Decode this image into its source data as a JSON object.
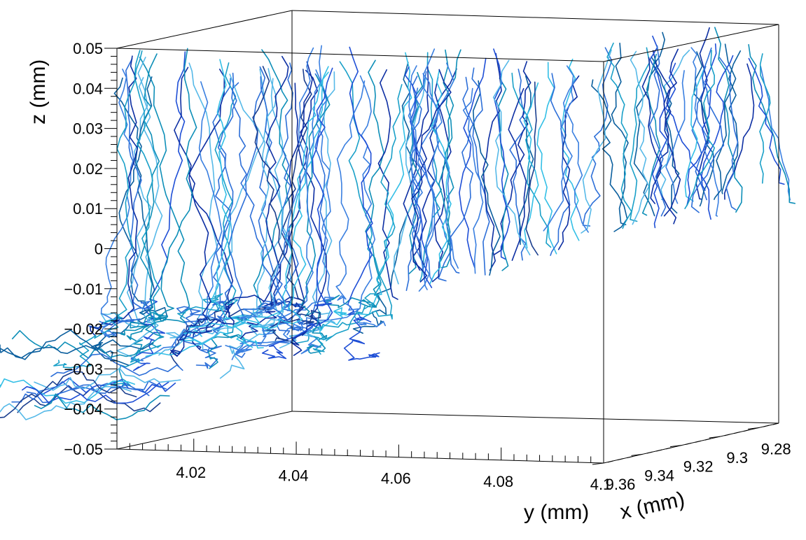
{
  "chart_data": {
    "type": "line",
    "subtype": "3d-trajectories",
    "title": "",
    "axes": {
      "x": {
        "label": "x (mm)",
        "range": [
          9.27,
          9.36
        ],
        "ticks": [
          "9.36",
          "9.34",
          "9.32",
          "9.3",
          "9.28"
        ]
      },
      "y": {
        "label": "y (mm)",
        "range": [
          4.005,
          4.1
        ],
        "ticks": [
          "4.02",
          "4.04",
          "4.06",
          "4.08",
          "4.1"
        ]
      },
      "z": {
        "label": "z (mm)",
        "range": [
          -0.05,
          0.05
        ],
        "ticks": [
          "0.05",
          "0.04",
          "0.03",
          "0.02",
          "0.01",
          "0",
          "−0.01",
          "−0.02",
          "−0.03",
          "−0.04",
          "−0.05"
        ]
      }
    },
    "grid": false,
    "legend": "none",
    "series_description": "Many random-walk particle trajectories starting near the top plane (z ≈ 0.05) and diffusing down into a dense cluster around z ≈ -0.03 to -0.04",
    "track_count": 130,
    "colors": [
      "#0d2fa3",
      "#1f4fd6",
      "#3a7fe0",
      "#1aa0c8",
      "#33bfe6",
      "#0b5f9e",
      "#2d6fd8",
      "#56b9e8",
      "#1b3f8f",
      "#0e8fb8"
    ]
  }
}
